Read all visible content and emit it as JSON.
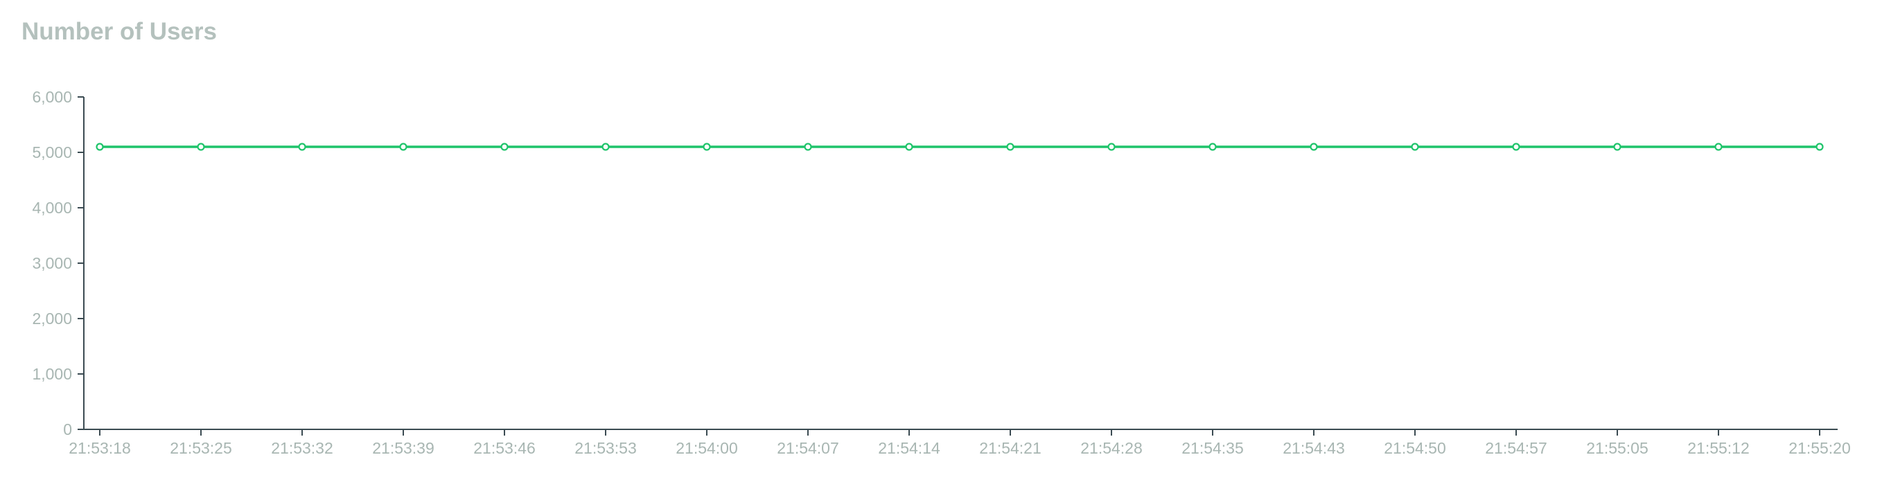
{
  "chart_data": {
    "type": "line",
    "title": "Number of Users",
    "xlabel": "",
    "ylabel": "",
    "categories": [
      "21:53:18",
      "21:53:25",
      "21:53:32",
      "21:53:39",
      "21:53:46",
      "21:53:53",
      "21:54:00",
      "21:54:07",
      "21:54:14",
      "21:54:21",
      "21:54:28",
      "21:54:35",
      "21:54:43",
      "21:54:50",
      "21:54:57",
      "21:55:05",
      "21:55:12",
      "21:55:20"
    ],
    "series": [
      {
        "values": [
          5100,
          5100,
          5100,
          5100,
          5100,
          5100,
          5100,
          5100,
          5100,
          5100,
          5100,
          5100,
          5100,
          5100,
          5100,
          5100,
          5100,
          5100
        ],
        "color": "#1fc46b"
      }
    ],
    "ylim": [
      0,
      6000
    ],
    "y_ticks": [
      "0",
      "1,000",
      "2,000",
      "3,000",
      "4,000",
      "5,000",
      "6,000"
    ],
    "grid": false,
    "legend": "none"
  }
}
